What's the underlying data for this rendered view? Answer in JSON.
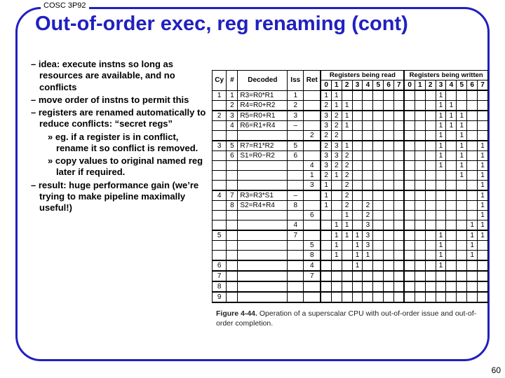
{
  "course": "COSC 3P92",
  "title": "Out-of-order exec, reg renaming (cont)",
  "page_number": "60",
  "bullets": {
    "b1": "– idea: execute instns so long as resources are available, and no conflicts",
    "b2": "– move order of instns to permit this",
    "b3": "– registers are renamed automatically to reduce conflicts: “secret regs”",
    "b3a": "» eg. if a register is in conflict, rename it so conflict is removed.",
    "b3b": "» copy values to original named reg later if required.",
    "b4": "– result: huge performance gain (we’re trying to make pipeline maximally useful!)"
  },
  "figure": {
    "caption_label": "Figure 4-44.",
    "caption_text": " Operation of a superscalar CPU with out-of-order issue and out-of-order completion.",
    "headers": {
      "cy": "Cy",
      "num": "#",
      "dec": "Decoded",
      "iss": "Iss",
      "ret": "Ret",
      "grp_read": "Registers being read",
      "grp_write": "Registers being written",
      "regs": [
        "0",
        "1",
        "2",
        "3",
        "4",
        "5",
        "6",
        "7"
      ]
    },
    "rows": [
      {
        "cy": "1",
        "n": "1",
        "dec": "R3=R0*R1",
        "iss": "1",
        "ret": "",
        "rd": [
          "1",
          "1",
          "",
          "",
          "",
          "",
          "",
          ""
        ],
        "wr": [
          "",
          "",
          "",
          "1",
          "",
          "",
          "",
          ""
        ]
      },
      {
        "cy": "",
        "n": "2",
        "dec": "R4=R0+R2",
        "iss": "2",
        "ret": "",
        "rd": [
          "2",
          "1",
          "1",
          "",
          "",
          "",
          "",
          ""
        ],
        "wr": [
          "",
          "",
          "",
          "1",
          "1",
          "",
          "",
          ""
        ],
        "hb": true
      },
      {
        "cy": "2",
        "n": "3",
        "dec": "R5=R0+R1",
        "iss": "3",
        "ret": "",
        "rd": [
          "3",
          "2",
          "1",
          "",
          "",
          "",
          "",
          ""
        ],
        "wr": [
          "",
          "",
          "",
          "1",
          "1",
          "1",
          "",
          ""
        ]
      },
      {
        "cy": "",
        "n": "4",
        "dec": "R6=R1+R4",
        "iss": "–",
        "ret": "",
        "rd": [
          "3",
          "2",
          "1",
          "",
          "",
          "",
          "",
          ""
        ],
        "wr": [
          "",
          "",
          "",
          "1",
          "1",
          "1",
          "",
          ""
        ]
      },
      {
        "cy": "",
        "n": "",
        "dec": "",
        "iss": "",
        "ret": "2",
        "rd": [
          "2",
          "2",
          "",
          "",
          "",
          "",
          "",
          ""
        ],
        "wr": [
          "",
          "",
          "",
          "1",
          "",
          "1",
          "",
          ""
        ],
        "hb": true
      },
      {
        "cy": "3",
        "n": "5",
        "dec": "R7=R1*R2",
        "iss": "5",
        "ret": "",
        "rd": [
          "2",
          "3",
          "1",
          "",
          "",
          "",
          "",
          ""
        ],
        "wr": [
          "",
          "",
          "",
          "1",
          "",
          "1",
          "",
          "1"
        ]
      },
      {
        "cy": "",
        "n": "6",
        "dec": "S1=R0−R2",
        "iss": "6",
        "ret": "",
        "rd": [
          "3",
          "3",
          "2",
          "",
          "",
          "",
          "",
          ""
        ],
        "wr": [
          "",
          "",
          "",
          "1",
          "",
          "1",
          "",
          "1"
        ]
      },
      {
        "cy": "",
        "n": "",
        "dec": "",
        "iss": "",
        "ret": "4",
        "rd": [
          "3",
          "2",
          "2",
          "",
          "",
          "",
          "",
          ""
        ],
        "wr": [
          "",
          "",
          "",
          "1",
          "",
          "1",
          "",
          "1"
        ]
      },
      {
        "cy": "",
        "n": "",
        "dec": "",
        "iss": "",
        "ret": "1",
        "rd": [
          "2",
          "1",
          "2",
          "",
          "",
          "",
          "",
          ""
        ],
        "wr": [
          "",
          "",
          "",
          "",
          "",
          "1",
          "",
          "1"
        ]
      },
      {
        "cy": "",
        "n": "",
        "dec": "",
        "iss": "",
        "ret": "3",
        "rd": [
          "1",
          "",
          "2",
          "",
          "",
          "",
          "",
          ""
        ],
        "wr": [
          "",
          "",
          "",
          "",
          "",
          "",
          "",
          "1"
        ],
        "hb": true
      },
      {
        "cy": "4",
        "n": "7",
        "dec": "R3=R3*S1",
        "iss": "–",
        "ret": "",
        "rd": [
          "1",
          "",
          "2",
          "",
          "",
          "",
          "",
          ""
        ],
        "wr": [
          "",
          "",
          "",
          "",
          "",
          "",
          "",
          "1"
        ]
      },
      {
        "cy": "",
        "n": "8",
        "dec": "S2=R4+R4",
        "iss": "8",
        "ret": "",
        "rd": [
          "1",
          "",
          "2",
          "",
          "2",
          "",
          "",
          ""
        ],
        "wr": [
          "",
          "",
          "",
          "",
          "",
          "",
          "",
          "1"
        ]
      },
      {
        "cy": "",
        "n": "",
        "dec": "",
        "iss": "",
        "ret": "6",
        "rd": [
          "",
          "",
          "1",
          "",
          "2",
          "",
          "",
          ""
        ],
        "wr": [
          "",
          "",
          "",
          "",
          "",
          "",
          "",
          "1"
        ]
      },
      {
        "cy": "",
        "n": "",
        "dec": "",
        "iss": "4",
        "ret": "",
        "rd": [
          "",
          "1",
          "1",
          "",
          "3",
          "",
          "",
          ""
        ],
        "wr": [
          "",
          "",
          "",
          "",
          "",
          "",
          "1",
          "1"
        ],
        "hb": true
      },
      {
        "cy": "5",
        "n": "",
        "dec": "",
        "iss": "7",
        "ret": "",
        "rd": [
          "",
          "1",
          "1",
          "1",
          "3",
          "",
          "",
          ""
        ],
        "wr": [
          "",
          "",
          "",
          "1",
          "",
          "",
          "1",
          "1"
        ]
      },
      {
        "cy": "",
        "n": "",
        "dec": "",
        "iss": "",
        "ret": "5",
        "rd": [
          "",
          "1",
          "",
          "1",
          "3",
          "",
          "",
          ""
        ],
        "wr": [
          "",
          "",
          "",
          "1",
          "",
          "",
          "1",
          ""
        ]
      },
      {
        "cy": "",
        "n": "",
        "dec": "",
        "iss": "",
        "ret": "8",
        "rd": [
          "",
          "1",
          "",
          "1",
          "1",
          "",
          "",
          ""
        ],
        "wr": [
          "",
          "",
          "",
          "1",
          "",
          "",
          "1",
          ""
        ],
        "hb": true
      },
      {
        "cy": "6",
        "n": "",
        "dec": "",
        "iss": "",
        "ret": "4",
        "rd": [
          "",
          "",
          "",
          "1",
          "",
          "",
          "",
          ""
        ],
        "wr": [
          "",
          "",
          "",
          "1",
          "",
          "",
          "",
          ""
        ],
        "hb": true
      },
      {
        "cy": "7",
        "n": "",
        "dec": "",
        "iss": "",
        "ret": "7",
        "rd": [
          "",
          "",
          "",
          "",
          "",
          "",
          "",
          ""
        ],
        "wr": [
          "",
          "",
          "",
          "",
          "",
          "",
          "",
          ""
        ],
        "hb": true
      },
      {
        "cy": "8",
        "n": "",
        "dec": "",
        "iss": "",
        "ret": "",
        "rd": [
          "",
          "",
          "",
          "",
          "",
          "",
          "",
          ""
        ],
        "wr": [
          "",
          "",
          "",
          "",
          "",
          "",
          "",
          ""
        ],
        "hb": true
      },
      {
        "cy": "9",
        "n": "",
        "dec": "",
        "iss": "",
        "ret": "",
        "rd": [
          "",
          "",
          "",
          "",
          "",
          "",
          "",
          ""
        ],
        "wr": [
          "",
          "",
          "",
          "",
          "",
          "",
          "",
          ""
        ],
        "hb": true
      }
    ]
  }
}
